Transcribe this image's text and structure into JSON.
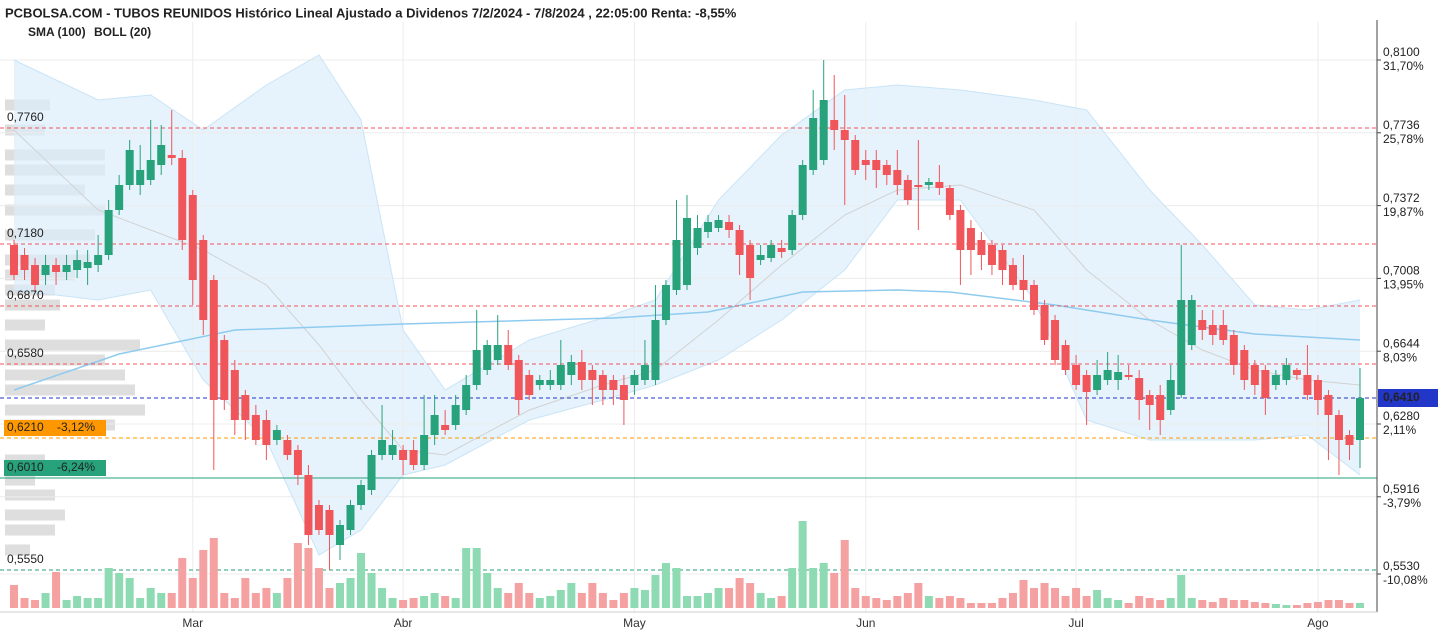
{
  "chart_data": {
    "type": "candlestick",
    "title": "PCBOLSA.COM - TUBOS REUNIDOS Histórico Lineal Ajustado a Dividenos 7/2/2024 - 7/8/2024 , 22:05:00 Renta: -8,55%",
    "categories": [
      null,
      null,
      null,
      null,
      null,
      null,
      null,
      null,
      null,
      null,
      null,
      null,
      null,
      null,
      null,
      null,
      null,
      "Mar",
      null,
      null,
      null,
      null,
      null,
      null,
      null,
      null,
      null,
      null,
      null,
      null,
      null,
      null,
      null,
      null,
      null,
      null,
      null,
      "Abr",
      null,
      null,
      null,
      null,
      null,
      null,
      null,
      null,
      null,
      null,
      null,
      null,
      null,
      null,
      null,
      null,
      null,
      null,
      null,
      null,
      null,
      "May",
      null,
      null,
      null,
      null,
      null,
      null,
      null,
      null,
      null,
      null,
      null,
      null,
      null,
      null,
      null,
      null,
      null,
      null,
      null,
      null,
      null,
      "Jun",
      null,
      null,
      null,
      null,
      null,
      null,
      null,
      null,
      null,
      null,
      null,
      null,
      null,
      null,
      null,
      null,
      null,
      null,
      null,
      "Jul",
      null,
      null,
      null,
      null,
      null,
      null,
      null,
      null,
      null,
      null,
      null,
      null,
      null,
      null,
      null,
      null,
      null,
      null,
      null,
      null,
      null,
      null,
      "Ago",
      null,
      null,
      null,
      null
    ],
    "open": [
      0.7175,
      0.7125,
      0.7075,
      0.7025,
      0.7075,
      0.704,
      0.705,
      0.706,
      0.7075,
      0.7125,
      0.735,
      0.7475,
      0.7475,
      0.75,
      0.7575,
      0.7625,
      0.761,
      0.7425,
      0.72,
      0.7,
      0.67,
      0.655,
      0.6425,
      0.6325,
      0.63,
      0.62,
      0.62,
      0.615,
      0.6025,
      0.5875,
      0.585,
      0.5675,
      0.575,
      0.5875,
      0.595,
      0.6125,
      0.6125,
      0.615,
      0.615,
      0.6075,
      0.6225,
      0.6275,
      0.6275,
      0.635,
      0.6475,
      0.655,
      0.66,
      0.6675,
      0.66,
      0.6525,
      0.6475,
      0.6475,
      0.6475,
      0.6525,
      0.659,
      0.655,
      0.6525,
      0.65,
      0.6475,
      0.6475,
      0.65,
      0.65,
      0.68,
      0.695,
      0.6975,
      0.716,
      0.724,
      0.726,
      0.729,
      0.725,
      0.7175,
      0.71,
      0.711,
      0.716,
      0.715,
      0.7325,
      0.755,
      0.76,
      0.78,
      0.775,
      0.77,
      0.76,
      0.76,
      0.7575,
      0.755,
      0.75,
      0.7475,
      0.7475,
      0.749,
      0.746,
      0.735,
      0.726,
      0.72,
      0.7175,
      0.715,
      0.7075,
      0.7,
      0.6975,
      0.6875,
      0.68,
      0.6675,
      0.6575,
      0.6525,
      0.645,
      0.65,
      0.65,
      0.6525,
      0.651,
      0.6425,
      0.6425,
      0.635,
      0.6425,
      0.6675,
      0.68,
      0.6775,
      0.6775,
      0.6725,
      0.665,
      0.6575,
      0.655,
      0.6475,
      0.65,
      0.655,
      0.6525,
      0.65,
      0.6425,
      0.6325,
      0.6225,
      0.62
    ],
    "high": [
      0.72,
      0.716,
      0.711,
      0.7125,
      0.711,
      0.7125,
      0.715,
      0.715,
      0.7225,
      0.74,
      0.7525,
      0.77,
      0.7675,
      0.78,
      0.7775,
      0.785,
      0.765,
      0.745,
      0.7225,
      0.7025,
      0.6725,
      0.66,
      0.645,
      0.6375,
      0.635,
      0.6275,
      0.6225,
      0.6175,
      0.6075,
      0.59,
      0.5875,
      0.58,
      0.59,
      0.6,
      0.615,
      0.6375,
      0.625,
      0.6175,
      0.62,
      0.6425,
      0.6425,
      0.635,
      0.6425,
      0.6525,
      0.685,
      0.67,
      0.6825,
      0.675,
      0.6625,
      0.655,
      0.6525,
      0.655,
      0.67,
      0.6625,
      0.665,
      0.6575,
      0.655,
      0.6525,
      0.6525,
      0.655,
      0.67,
      0.6975,
      0.7,
      0.74,
      0.7425,
      0.7325,
      0.7325,
      0.7325,
      0.7325,
      0.7275,
      0.72,
      0.7175,
      0.72,
      0.72,
      0.735,
      0.76,
      0.795,
      0.81,
      0.8025,
      0.7925,
      0.7725,
      0.765,
      0.765,
      0.76,
      0.765,
      0.7525,
      0.77,
      0.751,
      0.7575,
      0.7475,
      0.7375,
      0.73,
      0.724,
      0.72,
      0.7175,
      0.711,
      0.7125,
      0.7,
      0.69,
      0.6825,
      0.67,
      0.6625,
      0.655,
      0.66,
      0.664,
      0.6625,
      0.6575,
      0.655,
      0.645,
      0.6475,
      0.6575,
      0.7175,
      0.6925,
      0.685,
      0.685,
      0.685,
      0.675,
      0.6675,
      0.66,
      0.6575,
      0.655,
      0.661,
      0.656,
      0.6675,
      0.6525,
      0.645,
      0.635,
      0.625,
      0.656
    ],
    "low": [
      0.7,
      0.7,
      0.694,
      0.6975,
      0.6975,
      0.7,
      0.701,
      0.6975,
      0.704,
      0.71,
      0.7325,
      0.745,
      0.7425,
      0.7475,
      0.7525,
      0.7575,
      0.715,
      0.6875,
      0.6725,
      0.605,
      0.635,
      0.6225,
      0.62,
      0.6175,
      0.61,
      0.6175,
      0.61,
      0.5975,
      0.5675,
      0.5725,
      0.555,
      0.56,
      0.5725,
      0.585,
      0.5925,
      0.61,
      0.61,
      0.6025,
      0.605,
      0.605,
      0.6175,
      0.6225,
      0.625,
      0.6325,
      0.645,
      0.6525,
      0.6575,
      0.655,
      0.6325,
      0.64,
      0.645,
      0.645,
      0.645,
      0.6475,
      0.645,
      0.6375,
      0.6375,
      0.6375,
      0.6275,
      0.6425,
      0.6475,
      0.6475,
      0.6775,
      0.6925,
      0.695,
      0.7125,
      0.721,
      0.724,
      0.721,
      0.7025,
      0.69,
      0.7075,
      0.709,
      0.711,
      0.7125,
      0.73,
      0.7525,
      0.7575,
      0.765,
      0.7375,
      0.7525,
      0.75,
      0.746,
      0.7475,
      0.7425,
      0.7375,
      0.725,
      0.745,
      0.7425,
      0.73,
      0.6975,
      0.7025,
      0.705,
      0.7025,
      0.6975,
      0.695,
      0.69,
      0.6825,
      0.6675,
      0.6575,
      0.6525,
      0.645,
      0.6275,
      0.6425,
      0.6475,
      0.645,
      0.65,
      0.63,
      0.625,
      0.6225,
      0.6325,
      0.641,
      0.665,
      0.67,
      0.6675,
      0.6675,
      0.6525,
      0.645,
      0.6425,
      0.6325,
      0.645,
      0.6475,
      0.65,
      0.64,
      0.6325,
      0.61,
      0.6025,
      0.61,
      0.606
    ],
    "close": [
      0.7025,
      0.705,
      0.6975,
      0.7075,
      0.704,
      0.7075,
      0.71,
      0.709,
      0.7125,
      0.735,
      0.7475,
      0.765,
      0.755,
      0.76,
      0.7675,
      0.761,
      0.72,
      0.7,
      0.68,
      0.64,
      0.64,
      0.63,
      0.63,
      0.62,
      0.6175,
      0.625,
      0.6125,
      0.6025,
      0.5725,
      0.575,
      0.5725,
      0.5775,
      0.5875,
      0.5975,
      0.6125,
      0.62,
      0.6175,
      0.61,
      0.6075,
      0.6225,
      0.6325,
      0.625,
      0.6375,
      0.6475,
      0.665,
      0.6675,
      0.6675,
      0.6575,
      0.64,
      0.6425,
      0.65,
      0.65,
      0.6575,
      0.659,
      0.65,
      0.65,
      0.645,
      0.645,
      0.64,
      0.6525,
      0.6575,
      0.68,
      0.6975,
      0.72,
      0.731,
      0.726,
      0.729,
      0.73,
      0.725,
      0.7125,
      0.701,
      0.7125,
      0.7175,
      0.714,
      0.7325,
      0.7575,
      0.781,
      0.79,
      0.775,
      0.77,
      0.755,
      0.7575,
      0.755,
      0.7525,
      0.7475,
      0.74,
      0.7465,
      0.749,
      0.746,
      0.7325,
      0.715,
      0.715,
      0.7125,
      0.7075,
      0.705,
      0.6975,
      0.695,
      0.685,
      0.67,
      0.66,
      0.655,
      0.6475,
      0.644,
      0.6525,
      0.655,
      0.654,
      0.6515,
      0.64,
      0.6375,
      0.63,
      0.65,
      0.69,
      0.69,
      0.675,
      0.6725,
      0.67,
      0.6575,
      0.65,
      0.6475,
      0.641,
      0.6525,
      0.6575,
      0.6525,
      0.6425,
      0.64,
      0.6325,
      0.62,
      0.6175,
      0.641
    ],
    "volume": [
      23,
      10,
      8,
      15,
      36,
      8,
      12,
      10,
      10,
      40,
      35,
      30,
      10,
      20,
      15,
      15,
      50,
      30,
      58,
      70,
      15,
      10,
      30,
      15,
      20,
      15,
      30,
      65,
      60,
      40,
      20,
      25,
      30,
      55,
      35,
      20,
      10,
      8,
      10,
      12,
      15,
      12,
      10,
      60,
      60,
      35,
      20,
      15,
      25,
      15,
      10,
      12,
      18,
      25,
      15,
      25,
      15,
      8,
      15,
      20,
      18,
      33,
      45,
      40,
      12,
      12,
      15,
      20,
      20,
      30,
      25,
      15,
      10,
      12,
      40,
      87,
      40,
      45,
      35,
      68,
      20,
      12,
      10,
      8,
      12,
      15,
      25,
      12,
      10,
      12,
      10,
      5,
      5,
      5,
      10,
      15,
      28,
      20,
      25,
      20,
      12,
      20,
      12,
      18,
      10,
      8,
      5,
      12,
      10,
      8,
      10,
      33,
      10,
      8,
      6,
      10,
      8,
      8,
      6,
      5,
      4,
      3,
      3,
      5,
      6,
      8,
      8,
      5,
      5
    ],
    "volume_profile": {
      "prices": [
        0.7875,
        0.775,
        0.7625,
        0.755,
        0.745,
        0.735,
        0.7225,
        0.71,
        0.7025,
        0.695,
        0.6875,
        0.6775,
        0.6675,
        0.66,
        0.6525,
        0.645,
        0.635,
        0.6275,
        0.61,
        0.6,
        0.5925,
        0.5825,
        0.575,
        0.565
      ],
      "values": [
        45,
        40,
        100,
        100,
        80,
        100,
        90,
        85,
        70,
        50,
        55,
        40,
        135,
        100,
        120,
        130,
        140,
        110,
        40,
        30,
        50,
        60,
        50,
        25
      ]
    },
    "sma": {
      "name": "SMA (100)",
      "color": "#8ecbef",
      "x": [
        0,
        10,
        21,
        37,
        57,
        66,
        75,
        84,
        89,
        99,
        108,
        118,
        128
      ],
      "values": [
        0.645,
        0.663,
        0.675,
        0.678,
        0.681,
        0.684,
        0.694,
        0.695,
        0.694,
        0.6875,
        0.68,
        0.673,
        0.67
      ]
    },
    "boll": {
      "name": "BOLL (20)",
      "color": "#d2d2d2",
      "fill": "#dbeefb",
      "x": [
        0,
        8,
        13,
        18,
        24,
        29,
        33,
        37,
        41,
        49,
        56,
        61,
        67,
        73,
        79,
        84,
        90,
        97,
        102,
        108,
        113,
        118,
        123,
        128
      ],
      "upper": [
        0.81,
        0.79,
        0.7925,
        0.775,
        0.7975,
        0.8125,
        0.78,
        0.675,
        0.645,
        0.67,
        0.681,
        0.69,
        0.74,
        0.7725,
        0.795,
        0.7975,
        0.795,
        0.79,
        0.785,
        0.745,
        0.7175,
        0.6875,
        0.685,
        0.69
      ],
      "middle": [
        0.775,
        0.735,
        0.725,
        0.715,
        0.6975,
        0.6675,
        0.64,
        0.615,
        0.6125,
        0.635,
        0.6475,
        0.655,
        0.68,
        0.7075,
        0.7325,
        0.745,
        0.7475,
        0.735,
        0.705,
        0.68,
        0.665,
        0.655,
        0.65,
        0.6475
      ],
      "lower": [
        0.695,
        0.69,
        0.695,
        0.65,
        0.62,
        0.5625,
        0.575,
        0.6025,
        0.6075,
        0.63,
        0.64,
        0.6475,
        0.66,
        0.68,
        0.705,
        0.74,
        0.74,
        0.69,
        0.63,
        0.62,
        0.62,
        0.62,
        0.6225,
        0.6025
      ]
    },
    "ylim": [
      0.535,
      0.829
    ],
    "yticks": [
      {
        "value": 0.81,
        "label": "0,8100"
      },
      {
        "value": 0.7736,
        "label": "0,7736"
      },
      {
        "value": 0.7372,
        "label": "0,7372"
      },
      {
        "value": 0.7008,
        "label": "0,7008"
      },
      {
        "value": 0.6644,
        "label": "0,6644"
      },
      {
        "value": 0.628,
        "label": "0,6280"
      },
      {
        "value": 0.5916,
        "label": "0,5916"
      },
      {
        "value": 0.553,
        "label": "0,5530"
      }
    ],
    "ytick_changes": [
      "31,70%",
      "25,78%",
      "19,87%",
      "13,95%",
      "8,03%",
      "2,11%",
      "-3,79%",
      "-10,08%"
    ],
    "levels": [
      {
        "value": 0.776,
        "label": "0,7760",
        "color": "#f0555a",
        "style": "dashed"
      },
      {
        "value": 0.718,
        "label": "0,7180",
        "color": "#f0555a",
        "style": "dashed"
      },
      {
        "value": 0.687,
        "label": "0,6870",
        "color": "#f0555a",
        "style": "dashed"
      },
      {
        "value": 0.658,
        "label": "0,6580",
        "color": "#f0555a",
        "style": "dashed"
      },
      {
        "value": 0.641,
        "label": "0,6410",
        "color": "#2236c8",
        "style": "dashed",
        "side": "right",
        "boxed": true
      },
      {
        "value": 0.621,
        "label": "0,6210",
        "change": "-3,12%",
        "color": "#ff9800",
        "style": "dashed",
        "boxed": true
      },
      {
        "value": 0.601,
        "label": "0,6010",
        "change": "-6,24%",
        "color": "#27a27a",
        "style": "solid",
        "boxed": true
      },
      {
        "value": 0.555,
        "label": "0,5550",
        "color": "#27a27a",
        "style": "dashed"
      }
    ],
    "colors": {
      "up": "#27a27a",
      "down": "#f0555a",
      "volume_up": "#8edab3",
      "volume_down": "#f6a1a1",
      "profile": "#dedede",
      "change_up": "#27a27a",
      "change_down": "#f0555a"
    },
    "grid": true
  }
}
